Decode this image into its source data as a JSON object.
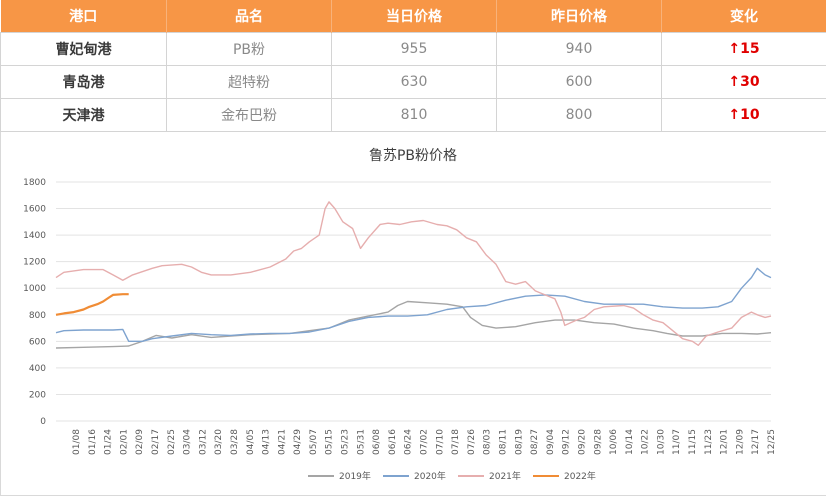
{
  "table": {
    "headers": [
      "港口",
      "品名",
      "当日价格",
      "昨日价格",
      "变化"
    ],
    "rows": [
      {
        "port": "曹妃甸港",
        "product": "PB粉",
        "today": "955",
        "yesterday": "940",
        "change": "↑15"
      },
      {
        "port": "青岛港",
        "product": "超特粉",
        "today": "630",
        "yesterday": "600",
        "change": "↑30"
      },
      {
        "port": "天津港",
        "product": "金布巴粉",
        "today": "810",
        "yesterday": "800",
        "change": "↑10"
      }
    ]
  },
  "chart_data": {
    "type": "line",
    "title": "鲁苏PB粉价格",
    "xlabel": "",
    "ylabel": "",
    "ylim": [
      0,
      1800
    ],
    "yticks": [
      0,
      200,
      400,
      600,
      800,
      1000,
      1200,
      1400,
      1600,
      1800
    ],
    "xlim": [
      1,
      365
    ],
    "xtick_labels": [
      "01/08",
      "01/16",
      "01/24",
      "02/01",
      "02/09",
      "02/17",
      "02/25",
      "03/04",
      "03/12",
      "03/20",
      "03/28",
      "04/05",
      "04/13",
      "04/21",
      "04/29",
      "05/07",
      "05/15",
      "05/23",
      "05/31",
      "06/08",
      "06/16",
      "06/24",
      "07/02",
      "07/10",
      "07/18",
      "07/26",
      "08/03",
      "08/11",
      "08/19",
      "08/27",
      "09/04",
      "09/12",
      "09/20",
      "09/28",
      "10/06",
      "10/14",
      "10/22",
      "10/30",
      "11/07",
      "11/15",
      "11/23",
      "12/01",
      "12/09",
      "12/17",
      "12/25"
    ],
    "x_unit": "day of year",
    "grid": "horizontal",
    "legend": "bottom",
    "series": [
      {
        "name": "2019年",
        "color": "#a5a5a5",
        "points": [
          [
            1,
            550
          ],
          [
            15,
            555
          ],
          [
            30,
            560
          ],
          [
            38,
            565
          ],
          [
            45,
            600
          ],
          [
            52,
            645
          ],
          [
            60,
            625
          ],
          [
            70,
            650
          ],
          [
            80,
            630
          ],
          [
            90,
            640
          ],
          [
            100,
            650
          ],
          [
            110,
            655
          ],
          [
            120,
            660
          ],
          [
            130,
            680
          ],
          [
            140,
            700
          ],
          [
            150,
            760
          ],
          [
            160,
            790
          ],
          [
            170,
            820
          ],
          [
            175,
            870
          ],
          [
            180,
            900
          ],
          [
            190,
            890
          ],
          [
            200,
            880
          ],
          [
            208,
            860
          ],
          [
            212,
            780
          ],
          [
            218,
            720
          ],
          [
            225,
            700
          ],
          [
            235,
            710
          ],
          [
            245,
            740
          ],
          [
            255,
            760
          ],
          [
            265,
            760
          ],
          [
            275,
            740
          ],
          [
            285,
            730
          ],
          [
            295,
            700
          ],
          [
            305,
            680
          ],
          [
            312,
            660
          ],
          [
            320,
            640
          ],
          [
            330,
            640
          ],
          [
            340,
            660
          ],
          [
            350,
            660
          ],
          [
            358,
            655
          ],
          [
            365,
            665
          ]
        ]
      },
      {
        "name": "2020年",
        "color": "#7ea3cf",
        "points": [
          [
            1,
            665
          ],
          [
            5,
            680
          ],
          [
            15,
            685
          ],
          [
            30,
            685
          ],
          [
            35,
            690
          ],
          [
            38,
            600
          ],
          [
            45,
            600
          ],
          [
            50,
            620
          ],
          [
            60,
            640
          ],
          [
            70,
            660
          ],
          [
            80,
            650
          ],
          [
            90,
            645
          ],
          [
            100,
            655
          ],
          [
            110,
            660
          ],
          [
            120,
            660
          ],
          [
            130,
            670
          ],
          [
            140,
            700
          ],
          [
            150,
            750
          ],
          [
            160,
            780
          ],
          [
            170,
            790
          ],
          [
            180,
            790
          ],
          [
            190,
            800
          ],
          [
            200,
            840
          ],
          [
            210,
            860
          ],
          [
            220,
            870
          ],
          [
            230,
            910
          ],
          [
            240,
            940
          ],
          [
            250,
            950
          ],
          [
            260,
            940
          ],
          [
            270,
            900
          ],
          [
            280,
            880
          ],
          [
            290,
            880
          ],
          [
            300,
            880
          ],
          [
            310,
            860
          ],
          [
            320,
            850
          ],
          [
            330,
            850
          ],
          [
            338,
            860
          ],
          [
            345,
            900
          ],
          [
            350,
            1000
          ],
          [
            355,
            1080
          ],
          [
            358,
            1150
          ],
          [
            362,
            1100
          ],
          [
            365,
            1080
          ]
        ]
      },
      {
        "name": "2021年",
        "color": "#e6aeae",
        "points": [
          [
            1,
            1080
          ],
          [
            5,
            1120
          ],
          [
            15,
            1140
          ],
          [
            25,
            1140
          ],
          [
            30,
            1100
          ],
          [
            35,
            1060
          ],
          [
            40,
            1100
          ],
          [
            50,
            1150
          ],
          [
            55,
            1170
          ],
          [
            65,
            1180
          ],
          [
            70,
            1160
          ],
          [
            75,
            1120
          ],
          [
            80,
            1100
          ],
          [
            90,
            1100
          ],
          [
            100,
            1120
          ],
          [
            110,
            1160
          ],
          [
            118,
            1220
          ],
          [
            122,
            1280
          ],
          [
            126,
            1300
          ],
          [
            130,
            1350
          ],
          [
            135,
            1400
          ],
          [
            138,
            1600
          ],
          [
            140,
            1650
          ],
          [
            143,
            1600
          ],
          [
            147,
            1500
          ],
          [
            152,
            1450
          ],
          [
            156,
            1300
          ],
          [
            160,
            1380
          ],
          [
            166,
            1480
          ],
          [
            170,
            1490
          ],
          [
            176,
            1480
          ],
          [
            182,
            1500
          ],
          [
            188,
            1510
          ],
          [
            195,
            1480
          ],
          [
            200,
            1470
          ],
          [
            205,
            1440
          ],
          [
            210,
            1380
          ],
          [
            215,
            1350
          ],
          [
            220,
            1250
          ],
          [
            225,
            1180
          ],
          [
            230,
            1050
          ],
          [
            235,
            1030
          ],
          [
            240,
            1050
          ],
          [
            245,
            980
          ],
          [
            250,
            950
          ],
          [
            255,
            920
          ],
          [
            258,
            820
          ],
          [
            260,
            720
          ],
          [
            266,
            760
          ],
          [
            270,
            780
          ],
          [
            275,
            840
          ],
          [
            280,
            860
          ],
          [
            290,
            870
          ],
          [
            295,
            850
          ],
          [
            300,
            800
          ],
          [
            305,
            760
          ],
          [
            310,
            740
          ],
          [
            315,
            680
          ],
          [
            320,
            620
          ],
          [
            325,
            600
          ],
          [
            328,
            570
          ],
          [
            332,
            640
          ],
          [
            338,
            670
          ],
          [
            345,
            700
          ],
          [
            350,
            780
          ],
          [
            355,
            820
          ],
          [
            358,
            800
          ],
          [
            362,
            780
          ],
          [
            365,
            790
          ]
        ]
      },
      {
        "name": "2022年",
        "color": "#f08c35",
        "points": [
          [
            1,
            800
          ],
          [
            5,
            810
          ],
          [
            10,
            820
          ],
          [
            15,
            840
          ],
          [
            18,
            860
          ],
          [
            22,
            880
          ],
          [
            25,
            900
          ],
          [
            28,
            930
          ],
          [
            30,
            950
          ],
          [
            35,
            955
          ],
          [
            38,
            955
          ]
        ]
      }
    ]
  }
}
